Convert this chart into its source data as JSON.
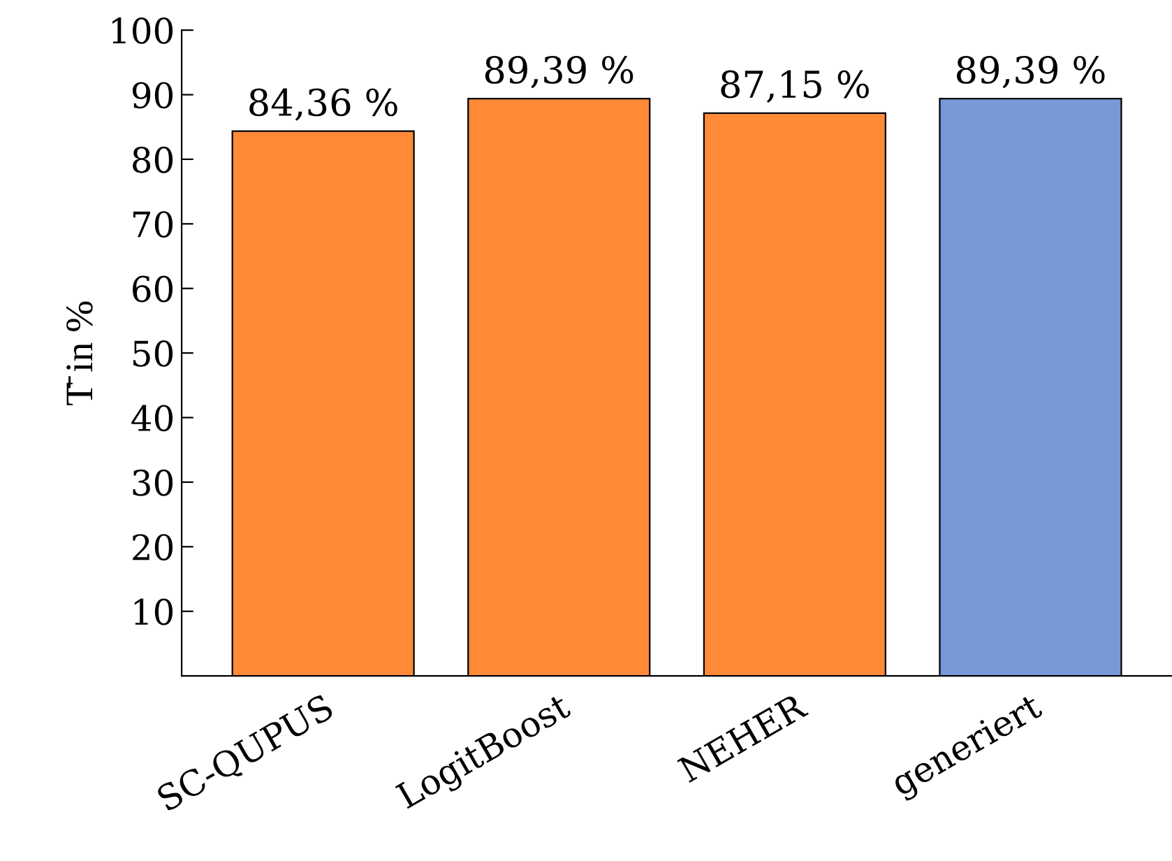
{
  "chart_data": {
    "type": "bar",
    "ylabel": "T̄ in %",
    "categories": [
      "SC-QUPUS",
      "LogitBoost",
      "NEHER",
      "generiert"
    ],
    "values": [
      84.36,
      89.39,
      87.15,
      89.39
    ],
    "colors": [
      "#fe8a38",
      "#fe8a38",
      "#fe8a38",
      "#7799d8"
    ],
    "value_labels": [
      "84,36 %",
      "89,39 %",
      "87,15 %",
      "89,39 %"
    ],
    "ylim": [
      0,
      100
    ],
    "yticks": [
      10,
      20,
      30,
      40,
      50,
      60,
      70,
      80,
      90,
      100
    ],
    "grid": false
  }
}
